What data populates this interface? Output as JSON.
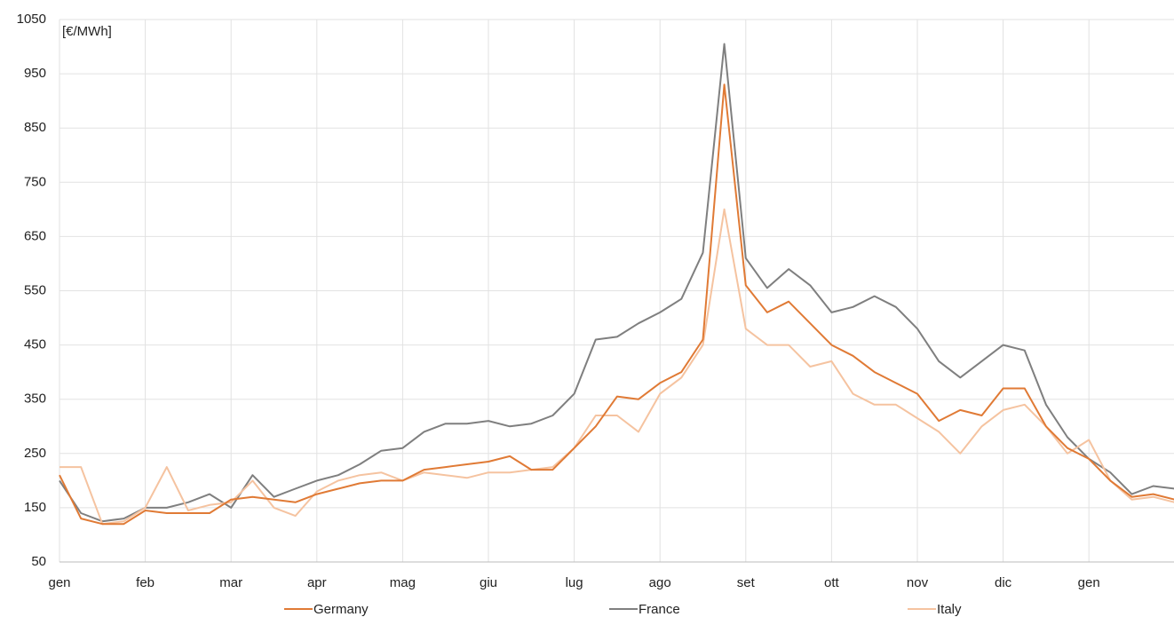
{
  "chart_data": {
    "type": "line",
    "annotation": "[€/MWh]",
    "categories": [
      "gen",
      null,
      null,
      null,
      "feb",
      null,
      null,
      null,
      "mar",
      null,
      null,
      null,
      "apr",
      null,
      null,
      null,
      "mag",
      null,
      null,
      null,
      "giu",
      null,
      null,
      null,
      "lug",
      null,
      null,
      null,
      "ago",
      null,
      null,
      null,
      "set",
      null,
      null,
      null,
      "ott",
      null,
      null,
      null,
      "nov",
      null,
      null,
      null,
      "dic",
      null,
      null,
      null,
      "gen",
      null,
      null,
      null,
      null
    ],
    "series": [
      {
        "name": "Germany",
        "color": "#e07a35",
        "values": [
          210,
          130,
          120,
          120,
          145,
          140,
          140,
          140,
          165,
          170,
          165,
          160,
          175,
          185,
          195,
          200,
          200,
          220,
          225,
          230,
          235,
          245,
          220,
          220,
          260,
          300,
          355,
          350,
          380,
          400,
          460,
          930,
          560,
          510,
          530,
          490,
          450,
          430,
          400,
          380,
          360,
          310,
          330,
          320,
          370,
          370,
          300,
          260,
          240,
          200,
          170,
          175,
          165
        ]
      },
      {
        "name": "France",
        "color": "#7f7f7f",
        "values": [
          200,
          140,
          125,
          130,
          150,
          150,
          160,
          175,
          150,
          210,
          170,
          185,
          200,
          210,
          230,
          255,
          260,
          290,
          305,
          305,
          310,
          300,
          305,
          320,
          360,
          460,
          465,
          490,
          510,
          535,
          620,
          1005,
          610,
          555,
          590,
          560,
          510,
          520,
          540,
          520,
          480,
          420,
          390,
          420,
          450,
          440,
          340,
          280,
          240,
          215,
          175,
          190,
          185
        ]
      },
      {
        "name": "Italy",
        "color": "#f5c3a0",
        "values": [
          225,
          225,
          120,
          125,
          150,
          225,
          145,
          155,
          160,
          200,
          150,
          135,
          180,
          200,
          210,
          215,
          200,
          215,
          210,
          205,
          215,
          215,
          220,
          225,
          260,
          320,
          320,
          290,
          360,
          390,
          450,
          700,
          480,
          450,
          450,
          410,
          420,
          360,
          340,
          340,
          315,
          290,
          250,
          300,
          330,
          340,
          300,
          250,
          275,
          200,
          165,
          170,
          160
        ]
      }
    ],
    "ylim": [
      50,
      1050
    ],
    "yticks": [
      50,
      150,
      250,
      350,
      450,
      550,
      650,
      750,
      850,
      950,
      1050
    ],
    "grid": true,
    "legend": "bottom"
  }
}
